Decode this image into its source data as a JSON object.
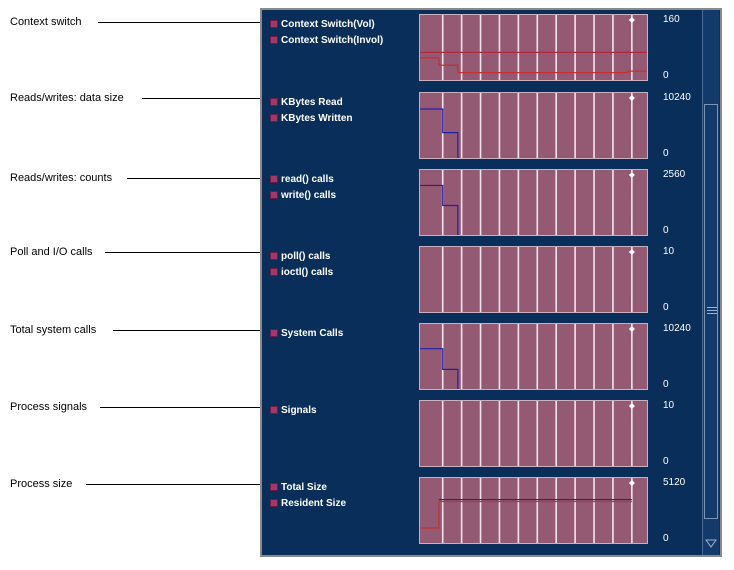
{
  "callouts": [
    {
      "label": "Context switch"
    },
    {
      "label": "Reads/writes: data size"
    },
    {
      "label": "Reads/writes: counts"
    },
    {
      "label": "Poll and I/O calls"
    },
    {
      "label": "Total system calls"
    },
    {
      "label": "Process signals"
    },
    {
      "label": "Process size"
    }
  ],
  "rows": [
    {
      "legend": [
        "Context Switch(Vol)",
        "Context Switch(Invol)"
      ],
      "max": "160",
      "min": "0",
      "ymax": 160,
      "series": [
        {
          "color": "#c43030",
          "points": [
            [
              0,
              60
            ],
            [
              1,
              60
            ],
            [
              1,
              40
            ],
            [
              2,
              40
            ],
            [
              2,
              20
            ],
            [
              11,
              20
            ],
            [
              11,
              24
            ],
            [
              12,
              24
            ],
            [
              12,
              20
            ]
          ]
        },
        {
          "color": "#b02838",
          "points": [
            [
              0,
              75
            ],
            [
              12,
              75
            ]
          ]
        }
      ]
    },
    {
      "legend": [
        "KBytes Read",
        "KBytes Written"
      ],
      "max": "10240",
      "min": "0",
      "ymax": 10240,
      "series": [
        {
          "color": "#2020aa",
          "points": [
            [
              0,
              8500
            ],
            [
              1.2,
              8500
            ],
            [
              1.2,
              4400
            ],
            [
              2,
              4400
            ],
            [
              2,
              0
            ]
          ]
        }
      ]
    },
    {
      "legend": [
        "read() calls",
        "write() calls"
      ],
      "max": "2560",
      "min": "0",
      "ymax": 2560,
      "series": [
        {
          "color": "#2020aa",
          "points": [
            [
              0,
              2150
            ],
            [
              1.2,
              2150
            ],
            [
              1.2,
              1280
            ],
            [
              2,
              1280
            ],
            [
              2,
              0
            ]
          ]
        }
      ]
    },
    {
      "legend": [
        "poll() calls",
        "ioctl() calls"
      ],
      "max": "10",
      "min": "0",
      "ymax": 10,
      "series": []
    },
    {
      "legend": [
        "System Calls"
      ],
      "max": "10240",
      "min": "0",
      "ymax": 10240,
      "series": [
        {
          "color": "#2020aa",
          "points": [
            [
              0,
              7000
            ],
            [
              1.2,
              7000
            ],
            [
              1.2,
              3400
            ],
            [
              2,
              3400
            ],
            [
              2,
              0
            ]
          ]
        }
      ]
    },
    {
      "legend": [
        "Signals"
      ],
      "max": "10",
      "min": "0",
      "ymax": 10,
      "series": []
    },
    {
      "legend": [
        "Total Size",
        "Resident Size"
      ],
      "max": "5120",
      "min": "0",
      "ymax": 5120,
      "series": [
        {
          "color": "#2020aa",
          "points": [
            [
              1,
              3770
            ],
            [
              11.2,
              3770
            ]
          ]
        },
        {
          "color": "#c43030",
          "points": [
            [
              0,
              1300
            ],
            [
              1,
              1300
            ],
            [
              1,
              3600
            ],
            [
              11.2,
              3600
            ]
          ]
        }
      ]
    }
  ]
}
